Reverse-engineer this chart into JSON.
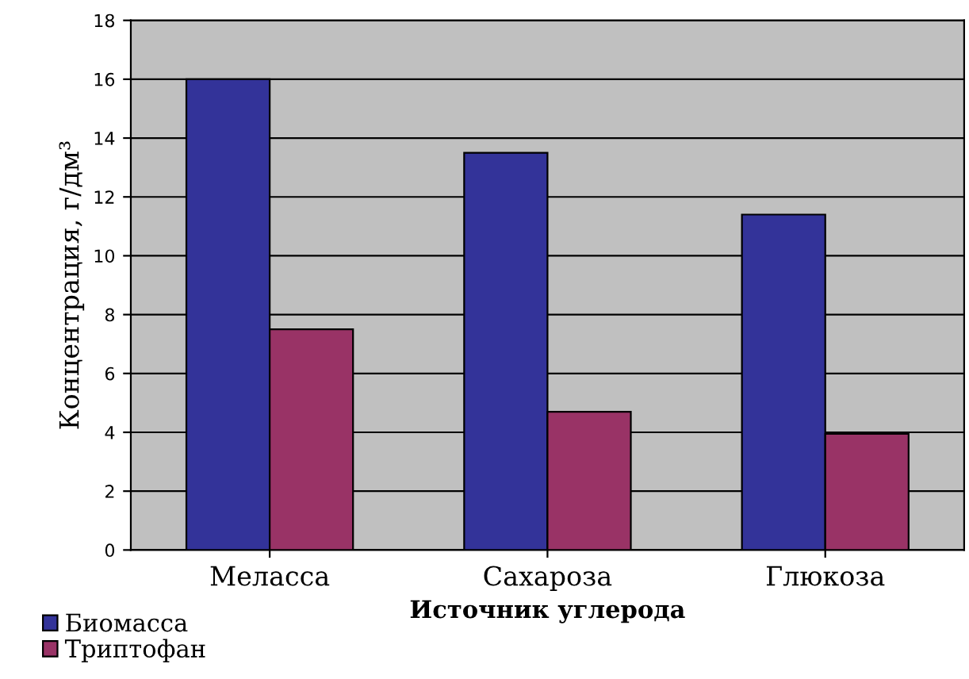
{
  "chart_data": {
    "type": "bar",
    "xlabel": "Источник углерода",
    "ylabel": "Концентрация, г/дм³",
    "categories": [
      "Меласса",
      "Сахароза",
      "Глюкоза"
    ],
    "series": [
      {
        "name": "Биомасса",
        "color": "#333399",
        "values": [
          16,
          13.5,
          11.4
        ]
      },
      {
        "name": "Триптофан",
        "color": "#993366",
        "values": [
          7.5,
          4.7,
          3.95
        ]
      }
    ],
    "ylim": [
      0,
      18
    ],
    "yticks": [
      0,
      2,
      4,
      6,
      8,
      10,
      12,
      14,
      16,
      18
    ],
    "grid": "y",
    "legend": "bottom left"
  }
}
